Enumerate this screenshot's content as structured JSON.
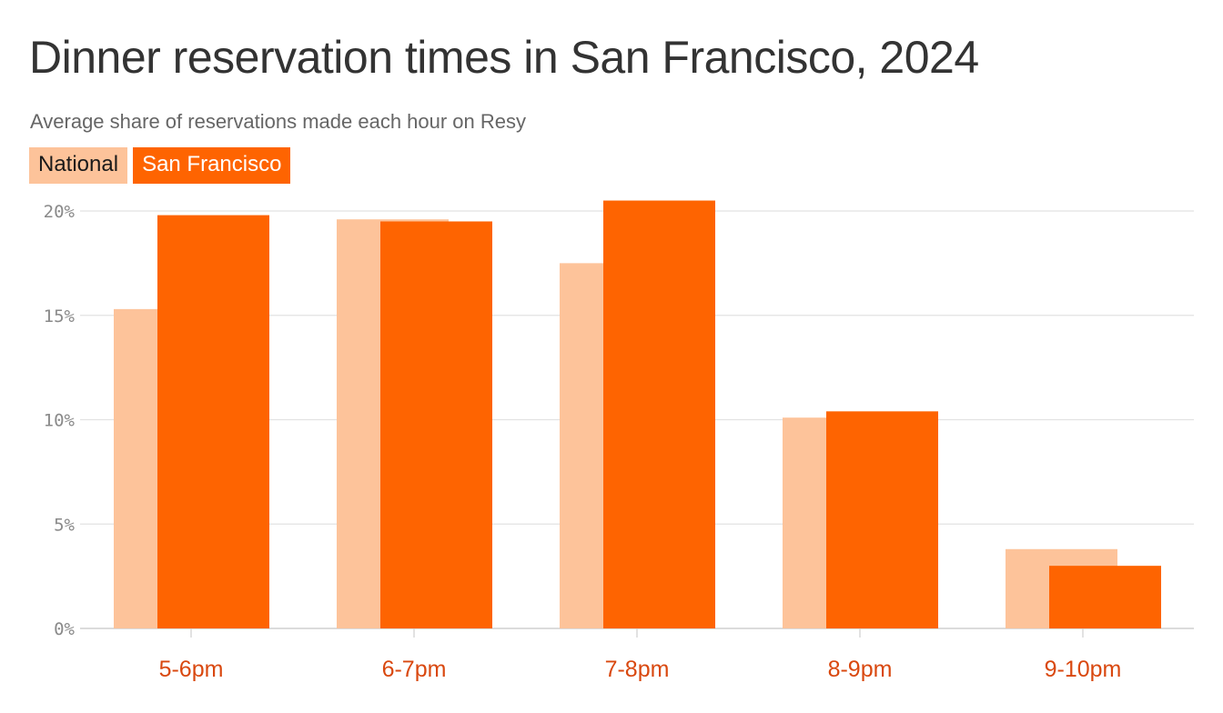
{
  "title": "Dinner reservation times in San Francisco, 2024",
  "subtitle": "Average share of reservations made each hour on Resy",
  "colors": {
    "national": "#fdc39a",
    "san_francisco": "#fe6401",
    "category_label": "#d9480f",
    "grid": "#e2e2e2",
    "axis": "#cfcfcf"
  },
  "chart_data": {
    "type": "bar",
    "categories": [
      "5-6pm",
      "6-7pm",
      "7-8pm",
      "8-9pm",
      "9-10pm"
    ],
    "series": [
      {
        "name": "National",
        "values": [
          15.3,
          19.6,
          17.5,
          10.1,
          3.8
        ]
      },
      {
        "name": "San Francisco",
        "values": [
          19.8,
          19.5,
          20.5,
          10.4,
          3.0
        ]
      }
    ],
    "ylim": [
      0,
      20
    ],
    "yticks": [
      0,
      5,
      10,
      15,
      20
    ],
    "ytick_labels": [
      "0%",
      "5%",
      "10%",
      "15%",
      "20%"
    ],
    "grid": true,
    "legend": "top-left"
  }
}
